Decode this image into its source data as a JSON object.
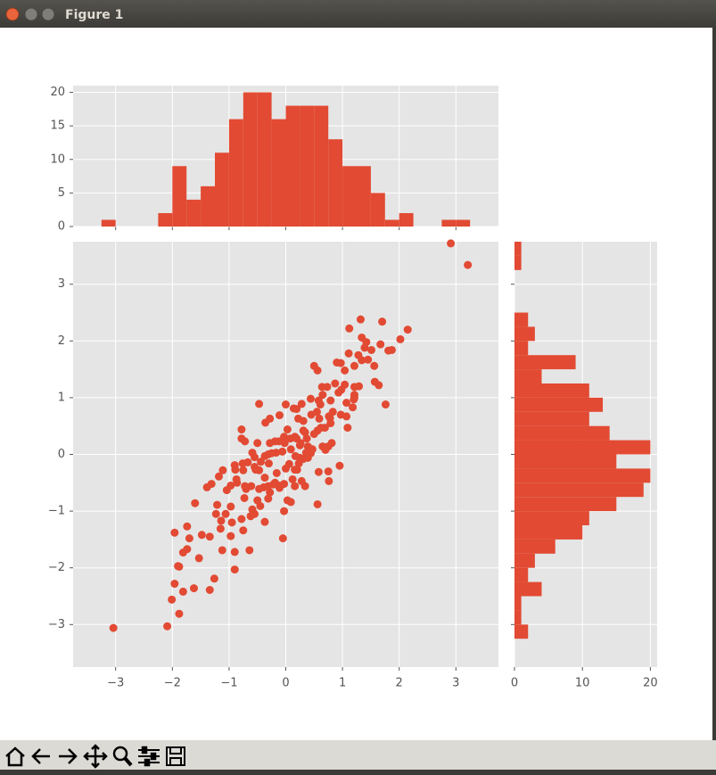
{
  "window": {
    "title": "Figure 1"
  },
  "chart_data": [
    {
      "type": "scatter",
      "color": "#e24a33",
      "grid": true,
      "xlim": [
        -3.75,
        3.75
      ],
      "ylim": [
        -3.75,
        3.75
      ],
      "xticks": [
        {
          "value": -3,
          "label": "−3"
        },
        {
          "value": -2,
          "label": "−2"
        },
        {
          "value": -1,
          "label": "−1"
        },
        0,
        1,
        2,
        3
      ],
      "yticks": [
        {
          "value": -3,
          "label": "−3"
        },
        {
          "value": -2,
          "label": "−2"
        },
        {
          "value": -1,
          "label": "−1"
        },
        0,
        1,
        2,
        3
      ],
      "x": [
        -3.04,
        -2.09,
        -1.88,
        -2.01,
        -1.96,
        -1.81,
        -1.62,
        -1.34,
        -1.26,
        -0.9,
        -1.9,
        -1.88,
        -1.53,
        -1.81,
        -1.74,
        -1.7,
        -1.96,
        -1.74,
        -1.48,
        -1.34,
        -1.12,
        -0.9,
        -0.97,
        -1.15,
        -0.95,
        -0.75,
        -0.64,
        -0.05,
        -0.37,
        -0.55,
        -0.78,
        -0.97,
        -1.14,
        -1.23,
        -1.21,
        -1.06,
        -1.6,
        -1.39,
        -1.31,
        -1.18,
        -1.11,
        -1.04,
        -0.97,
        -0.89,
        -0.9,
        -0.87,
        -0.75,
        -0.72,
        -0.73,
        -0.59,
        -0.5,
        -0.47,
        -0.53,
        -0.61,
        -0.39,
        -0.31,
        -0.37,
        -0.28,
        -0.22,
        -0.19,
        -0.16,
        -0.12,
        -0.03,
        0.03,
        0.09,
        0.16,
        0.12,
        0.0,
        -0.03,
        -0.11,
        0.06,
        0.2,
        0.28,
        0.34,
        0.39,
        0.44,
        0.47,
        0.5,
        0.56,
        0.58,
        0.75,
        0.76,
        0.95,
        0.75,
        0.7,
        0.81,
        0.79,
        0.62,
        0.56,
        0.59,
        0.55,
        0.45,
        0.31,
        0.44,
        0.58,
        0.65,
        0.64,
        0.56,
        0.5,
        0.73,
        0.9,
        1.04,
        0.97,
        1.11,
        1.21,
        1.28,
        1.34,
        1.34,
        1.45,
        1.39,
        1.42,
        1.51,
        1.67,
        1.12,
        1.04,
        0.98,
        1.21,
        1.29,
        1.21,
        1.2,
        1.18,
        1.21,
        1.07,
        1.07,
        1.09,
        0.93,
        0.87,
        0.79,
        0.76,
        0.83,
        0.61,
        0.28,
        0.19,
        0.22,
        0.14,
        0.0,
        0.03,
        -0.03,
        -0.02,
        -0.06,
        0.08,
        0.16,
        0.31,
        0.34,
        0.37,
        0.39,
        0.36,
        0.31,
        0.25,
        0.26,
        0.19,
        0.17,
        0.09,
        -0.19,
        -0.28,
        -0.36,
        -0.47,
        -0.28,
        -0.37,
        -0.31,
        -0.25,
        -0.17,
        -0.11,
        -0.12,
        -0.5,
        -0.59,
        -0.55,
        -0.78,
        -0.78,
        -0.72,
        -0.76,
        -0.67,
        -0.55,
        -0.47,
        -0.3,
        -0.44,
        0.16,
        0.23,
        0.25,
        0.65,
        0.69,
        0.78,
        0.97,
        1.76,
        1.57,
        1.64,
        1.56,
        1.87,
        2.02,
        2.15,
        1.7,
        1.32,
        1.81,
        2.91,
        3.21,
        -0.86,
        -0.7,
        -0.62,
        -0.45,
        -0.31
      ],
      "y": [
        -3.06,
        -3.03,
        -2.81,
        -2.56,
        -2.28,
        -2.42,
        -2.36,
        -2.39,
        -2.19,
        -2.03,
        -1.97,
        -1.98,
        -1.83,
        -1.73,
        -1.67,
        -1.48,
        -1.38,
        -1.27,
        -1.42,
        -1.45,
        -1.69,
        -1.72,
        -1.44,
        -1.31,
        -1.2,
        -1.34,
        -1.69,
        -1.48,
        -1.19,
        -1.05,
        -1.14,
        -0.92,
        -1.17,
        -1.05,
        -0.89,
        -1.05,
        -0.86,
        -0.58,
        -0.52,
        -0.39,
        -0.28,
        -0.63,
        -0.55,
        -0.27,
        -0.19,
        -0.44,
        -0.28,
        -0.56,
        -0.77,
        -0.97,
        -0.81,
        -0.61,
        -0.27,
        -0.56,
        -0.58,
        -0.56,
        -0.41,
        -0.67,
        -0.53,
        -0.5,
        -0.33,
        -0.55,
        -1.0,
        -0.81,
        -0.84,
        -0.56,
        -0.44,
        -0.25,
        -0.52,
        -0.59,
        -0.17,
        -0.27,
        -0.47,
        -0.56,
        -0.06,
        0.02,
        0.09,
        0.36,
        -0.88,
        -0.31,
        -0.3,
        -0.47,
        -0.2,
        0.14,
        0.08,
        0.2,
        0.55,
        0.47,
        0.42,
        0.63,
        0.75,
        0.7,
        0.59,
        0.98,
        0.95,
        1.05,
        1.19,
        1.48,
        1.56,
        1.19,
        1.62,
        1.48,
        1.61,
        1.78,
        1.56,
        1.75,
        1.66,
        2.06,
        1.67,
        1.88,
        1.98,
        1.84,
        1.94,
        2.22,
        1.23,
        1.14,
        1.19,
        1.2,
        1.05,
        0.97,
        0.83,
        1.0,
        0.67,
        0.91,
        0.47,
        1.09,
        1.25,
        0.95,
        0.67,
        0.75,
        0.88,
        0.89,
        0.8,
        0.63,
        0.81,
        0.88,
        0.44,
        0.31,
        0.2,
        0.05,
        0.28,
        0.31,
        0.42,
        0.39,
        0.28,
        0.14,
        0.03,
        -0.08,
        -0.06,
        0.2,
        0.28,
        -0.03,
        0.09,
        0.23,
        0.63,
        0.56,
        0.89,
        0.2,
        -0.03,
        0.0,
        0.02,
        0.03,
        0.69,
        0.23,
        0.2,
        0.03,
        -0.05,
        0.44,
        0.28,
        0.23,
        -0.16,
        -0.14,
        -0.22,
        -0.28,
        -0.16,
        -0.13,
        -0.27,
        -0.16,
        0.16,
        0.14,
        0.47,
        0.64,
        0.7,
        0.88,
        1.28,
        1.22,
        1.56,
        1.84,
        2.03,
        2.2,
        2.34,
        2.38,
        1.83,
        3.72,
        3.34,
        -0.5,
        -0.61,
        -1.09,
        -0.91,
        -0.78
      ]
    },
    {
      "type": "histogram",
      "color": "#e24a33",
      "grid": true,
      "orientation": "vertical",
      "xlim": [
        -3.75,
        3.75
      ],
      "ylim": [
        0,
        21
      ],
      "xticks": [
        -3,
        -2,
        -1,
        0,
        1,
        2,
        3
      ],
      "xticklabels": false,
      "yticks": [
        0,
        5,
        10,
        15,
        20
      ],
      "bins": [
        -3.75,
        -3.5,
        -3.25,
        -3,
        -2.75,
        -2.5,
        -2.25,
        -2,
        -1.75,
        -1.5,
        -1.25,
        -1,
        -0.75,
        -0.5,
        -0.25,
        0,
        0.25,
        0.5,
        0.75,
        1,
        1.25,
        1.5,
        1.75,
        2,
        2.25,
        2.5,
        2.75,
        3,
        3.25,
        3.5,
        3.75
      ],
      "values": [
        0,
        0,
        1,
        0,
        0,
        0,
        2,
        9,
        4,
        6,
        11,
        16,
        20,
        20,
        16,
        18,
        18,
        18,
        13,
        9,
        9,
        5,
        1,
        2,
        0,
        0,
        1,
        1,
        0,
        0
      ]
    },
    {
      "type": "histogram",
      "color": "#e24a33",
      "grid": true,
      "orientation": "horizontal",
      "xlim": [
        0,
        21
      ],
      "ylim": [
        -3.75,
        3.75
      ],
      "xticks": [
        0,
        10,
        20
      ],
      "yticks": [
        -3,
        -2,
        -1,
        0,
        1,
        2,
        3
      ],
      "yticklabels": false,
      "bins": [
        -3.75,
        -3.5,
        -3.25,
        -3,
        -2.75,
        -2.5,
        -2.25,
        -2,
        -1.75,
        -1.5,
        -1.25,
        -1,
        -0.75,
        -0.5,
        -0.25,
        0,
        0.25,
        0.5,
        0.75,
        1,
        1.25,
        1.5,
        1.75,
        2,
        2.25,
        2.5,
        2.75,
        3,
        3.25,
        3.5,
        3.75
      ],
      "values": [
        0,
        0,
        2,
        1,
        1,
        4,
        2,
        3,
        6,
        10,
        11,
        15,
        19,
        20,
        15,
        20,
        14,
        11,
        13,
        11,
        4,
        9,
        2,
        3,
        2,
        0,
        0,
        0,
        1,
        1
      ]
    }
  ]
}
